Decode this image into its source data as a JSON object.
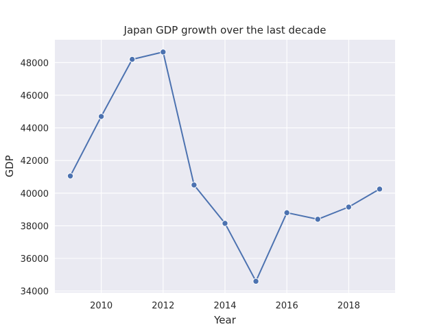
{
  "chart_data": {
    "type": "line",
    "title": "Japan GDP growth over the last decade",
    "xlabel": "Year",
    "ylabel": "GDP",
    "x": [
      2009,
      2010,
      2011,
      2012,
      2013,
      2014,
      2015,
      2016,
      2017,
      2018,
      2019
    ],
    "series": [
      {
        "values": [
          41050,
          44700,
          48200,
          48650,
          40500,
          38150,
          34600,
          38800,
          38400,
          39150,
          40250
        ]
      }
    ],
    "xticks": [
      "2010",
      "2012",
      "2014",
      "2016",
      "2018"
    ],
    "yticks": [
      "34000",
      "36000",
      "38000",
      "40000",
      "42000",
      "44000",
      "46000",
      "48000"
    ],
    "xlim": [
      2008.5,
      2019.5
    ],
    "ylim": [
      33900,
      49400
    ],
    "grid": true,
    "colors": {
      "background": "#eaeaf2",
      "grid": "#ffffff",
      "line": "#4c72b0"
    }
  }
}
